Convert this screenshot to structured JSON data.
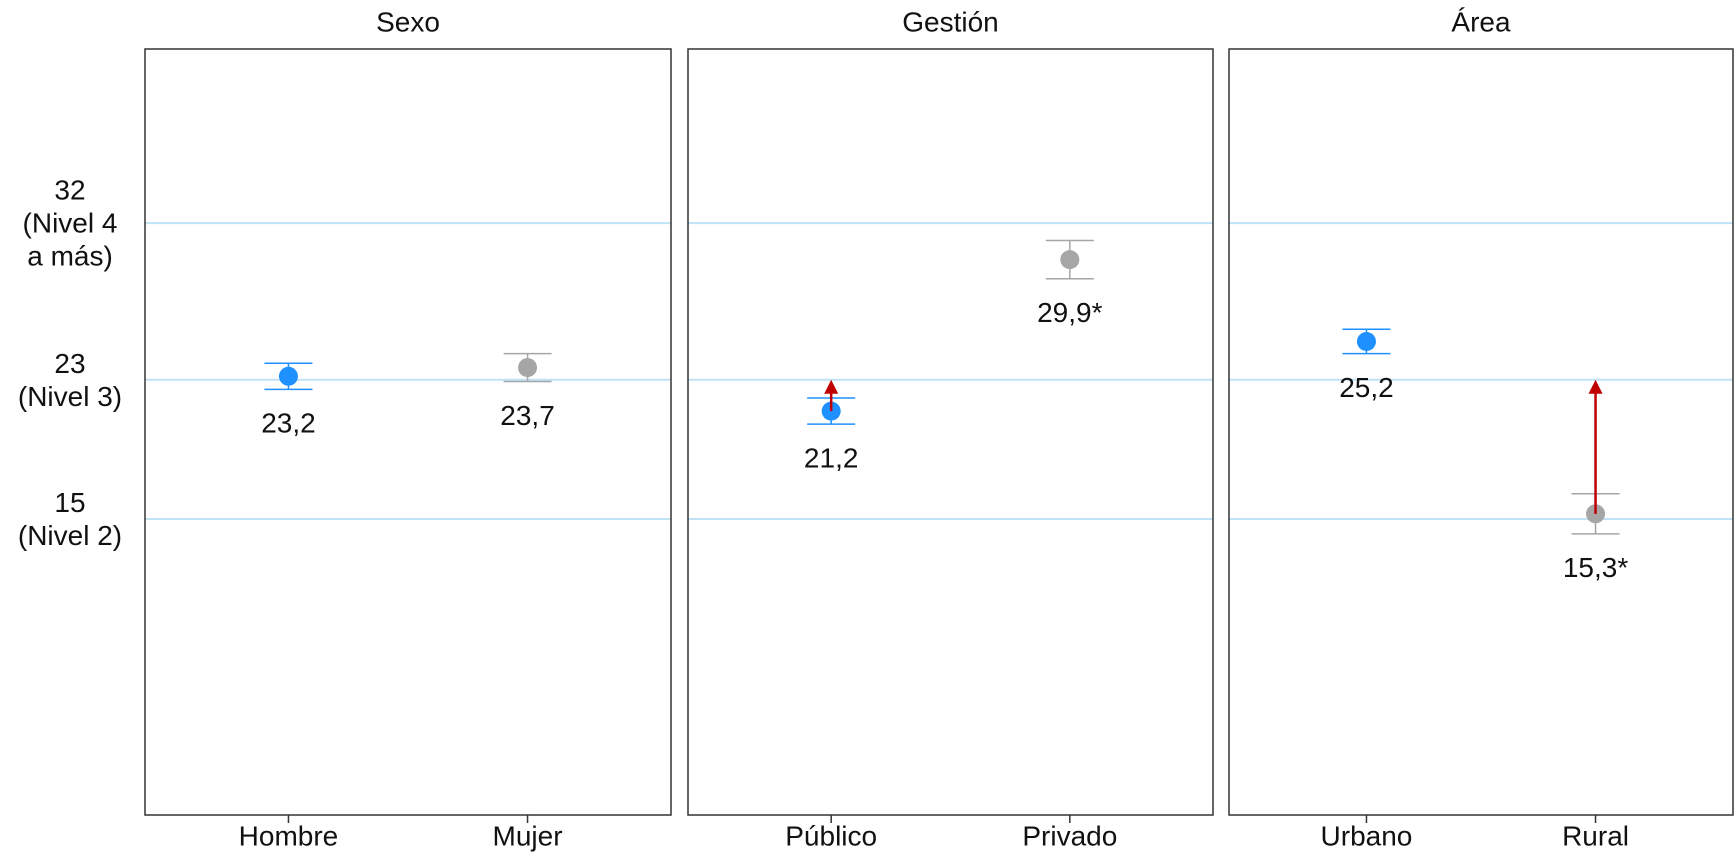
{
  "chart_data": {
    "type": "dot",
    "ylim": [
      -2,
      42
    ],
    "yticks": [
      {
        "value": 15,
        "label": "15\n(Nivel 2)"
      },
      {
        "value": 23,
        "label": "23\n(Nivel 3)"
      },
      {
        "value": 32,
        "label": "32\n(Nivel 4\na más)"
      }
    ],
    "grid": true,
    "grid_color": "#bfe2f6",
    "colors": [
      "#1e90ff",
      "#a6a6a6"
    ],
    "arrow_color": "#c00000",
    "panels": [
      {
        "title": "Sexo",
        "categories": [
          "Hombre",
          "Mujer"
        ],
        "values": [
          23.2,
          23.7
        ],
        "errors": [
          0.75,
          0.8
        ],
        "value_labels": [
          "23,2",
          "23,7"
        ],
        "targets": [
          null,
          null
        ]
      },
      {
        "title": "Gestión",
        "categories": [
          "Público",
          "Privado"
        ],
        "values": [
          21.2,
          29.9
        ],
        "errors": [
          0.75,
          1.1
        ],
        "value_labels": [
          "21,2",
          "29,9*"
        ],
        "targets": [
          23,
          null
        ]
      },
      {
        "title": "Área",
        "categories": [
          "Urbano",
          "Rural"
        ],
        "values": [
          25.2,
          15.3
        ],
        "errors": [
          0.7,
          1.15
        ],
        "value_labels": [
          "25,2",
          "15,3*"
        ],
        "targets": [
          null,
          23
        ]
      }
    ]
  }
}
